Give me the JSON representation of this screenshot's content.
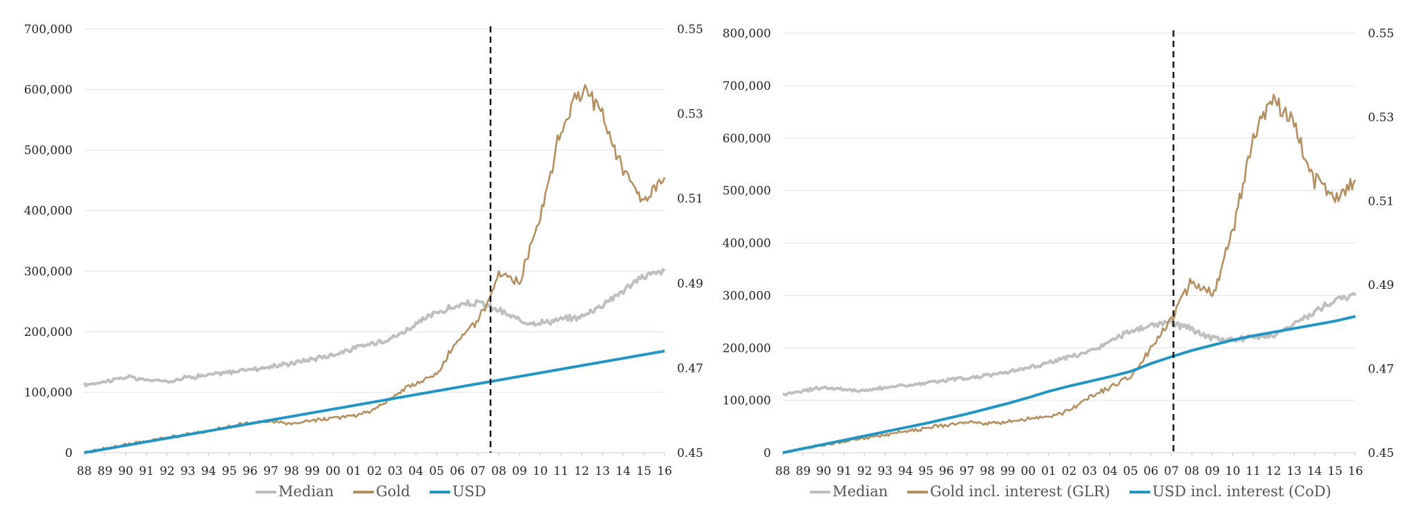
{
  "chart_data": [
    {
      "type": "line",
      "title": "",
      "xlabel": "",
      "ylabel": "",
      "x_tick_labels": [
        "88",
        "89",
        "90",
        "91",
        "92",
        "93",
        "94",
        "95",
        "96",
        "97",
        "98",
        "99",
        "00",
        "01",
        "02",
        "03",
        "04",
        "05",
        "06",
        "07",
        "08",
        "09",
        "10",
        "11",
        "12",
        "13",
        "14",
        "15",
        "16"
      ],
      "x_range": [
        1988,
        2016
      ],
      "ylim": [
        0,
        700000
      ],
      "y_ticks": [
        0,
        100000,
        200000,
        300000,
        400000,
        500000,
        600000,
        700000
      ],
      "y_tick_labels": [
        "0",
        "100,000",
        "200,000",
        "300,000",
        "400,000",
        "500,000",
        "600,000",
        "700,000"
      ],
      "y2lim": [
        0.45,
        0.55
      ],
      "y2_ticks": [
        0.45,
        0.47,
        0.49,
        0.51,
        0.53,
        0.55
      ],
      "y2_tick_labels": [
        "0.45",
        "0.47",
        "0.49",
        "0.51",
        "0.53",
        "0.55"
      ],
      "grid": true,
      "legend_position": "bottom",
      "vertical_marker_x": 2007.6,
      "series": [
        {
          "name": "Median",
          "color": "#bfbfbf",
          "x": [
            1988,
            1989,
            1990,
            1991,
            1992,
            1993,
            1994,
            1995,
            1996,
            1997,
            1998,
            1999,
            2000,
            2001,
            2002,
            2003,
            2004,
            2005,
            2006,
            2007,
            2008,
            2009,
            2010,
            2011,
            2012,
            2013,
            2014,
            2015,
            2016
          ],
          "values": [
            112000,
            118000,
            125000,
            120000,
            118000,
            125000,
            128000,
            133000,
            138000,
            142000,
            148000,
            155000,
            162000,
            172000,
            182000,
            192000,
            212000,
            232000,
            242000,
            248000,
            235000,
            218000,
            215000,
            220000,
            225000,
            245000,
            268000,
            292000,
            300000
          ]
        },
        {
          "name": "Gold",
          "color": "#b58e5d",
          "x": [
            1988,
            1989,
            1990,
            1991,
            1992,
            1993,
            1994,
            1995,
            1996,
            1997,
            1998,
            1999,
            2000,
            2001,
            2002,
            2003,
            2004,
            2005,
            2006,
            2007,
            2008,
            2009,
            2010,
            2011,
            2012,
            2013,
            2014,
            2015,
            2016
          ],
          "values": [
            0,
            7000,
            13000,
            19000,
            25000,
            30000,
            36000,
            43000,
            49000,
            52000,
            48000,
            52000,
            58000,
            60000,
            72000,
            95000,
            115000,
            130000,
            185000,
            215000,
            300000,
            280000,
            390000,
            540000,
            600000,
            560000,
            460000,
            420000,
            455000
          ]
        },
        {
          "name": "USD",
          "color": "#2196c4",
          "x": [
            1988,
            1989,
            1990,
            1991,
            1992,
            1993,
            1994,
            1995,
            1996,
            1997,
            1998,
            1999,
            2000,
            2001,
            2002,
            2003,
            2004,
            2005,
            2006,
            2007,
            2008,
            2009,
            2010,
            2011,
            2012,
            2013,
            2014,
            2015,
            2016
          ],
          "values": [
            0,
            6000,
            12000,
            18000,
            24000,
            30000,
            36000,
            42000,
            48000,
            54000,
            60000,
            66000,
            72000,
            78000,
            84000,
            90000,
            96000,
            102000,
            108000,
            114000,
            120000,
            126000,
            132000,
            138000,
            144000,
            150000,
            156000,
            162000,
            168000
          ]
        }
      ]
    },
    {
      "type": "line",
      "title": "",
      "xlabel": "",
      "ylabel": "",
      "x_tick_labels": [
        "88",
        "89",
        "90",
        "91",
        "92",
        "93",
        "94",
        "95",
        "96",
        "97",
        "98",
        "99",
        "00",
        "01",
        "02",
        "03",
        "04",
        "05",
        "06",
        "07",
        "08",
        "09",
        "10",
        "11",
        "12",
        "13",
        "14",
        "15",
        "16"
      ],
      "x_range": [
        1988,
        2016
      ],
      "ylim": [
        0,
        800000
      ],
      "y_ticks": [
        0,
        100000,
        200000,
        300000,
        400000,
        500000,
        600000,
        700000,
        800000
      ],
      "y_tick_labels": [
        "0",
        "100,000",
        "200,000",
        "300,000",
        "400,000",
        "500,000",
        "600,000",
        "700,000",
        "800,000"
      ],
      "y2lim": [
        0.45,
        0.55
      ],
      "y2_ticks": [
        0.45,
        0.47,
        0.49,
        0.51,
        0.53,
        0.55
      ],
      "y2_tick_labels": [
        "0.45",
        "0.47",
        "0.49",
        "0.51",
        "0.53",
        "0.55"
      ],
      "grid": true,
      "legend_position": "bottom",
      "vertical_marker_x": 2007.1,
      "series": [
        {
          "name": "Median",
          "color": "#bfbfbf",
          "x": [
            1988,
            1989,
            1990,
            1991,
            1992,
            1993,
            1994,
            1995,
            1996,
            1997,
            1998,
            1999,
            2000,
            2001,
            2002,
            2003,
            2004,
            2005,
            2006,
            2007,
            2008,
            2009,
            2010,
            2011,
            2012,
            2013,
            2014,
            2015,
            2016
          ],
          "values": [
            112000,
            118000,
            125000,
            120000,
            118000,
            125000,
            128000,
            133000,
            138000,
            142000,
            148000,
            155000,
            162000,
            172000,
            182000,
            192000,
            212000,
            232000,
            242000,
            248000,
            235000,
            218000,
            215000,
            220000,
            225000,
            245000,
            268000,
            292000,
            300000
          ]
        },
        {
          "name": "Gold incl. interest (GLR)",
          "color": "#b58e5d",
          "x": [
            1988,
            1989,
            1990,
            1991,
            1992,
            1993,
            1994,
            1995,
            1996,
            1997,
            1998,
            1999,
            2000,
            2001,
            2002,
            2003,
            2004,
            2005,
            2006,
            2007,
            2008,
            2009,
            2010,
            2011,
            2012,
            2013,
            2014,
            2015,
            2016
          ],
          "values": [
            0,
            8000,
            15000,
            22000,
            28000,
            34000,
            40000,
            47000,
            53000,
            58000,
            55000,
            60000,
            65000,
            68000,
            80000,
            105000,
            125000,
            145000,
            200000,
            255000,
            330000,
            300000,
            420000,
            600000,
            680000,
            620000,
            520000,
            480000,
            520000
          ]
        },
        {
          "name": "USD incl. interest (CoD)",
          "color": "#2196c4",
          "x": [
            1988,
            1989,
            1990,
            1991,
            1992,
            1993,
            1994,
            1995,
            1996,
            1997,
            1998,
            1999,
            2000,
            2001,
            2002,
            2003,
            2004,
            2005,
            2006,
            2007,
            2008,
            2009,
            2010,
            2011,
            2012,
            2013,
            2014,
            2015,
            2016
          ],
          "values": [
            0,
            8000,
            16000,
            24000,
            32000,
            40000,
            48000,
            56000,
            65000,
            74000,
            84000,
            94000,
            105000,
            117000,
            127000,
            136000,
            145000,
            155000,
            170000,
            183000,
            195000,
            205000,
            215000,
            223000,
            230000,
            237000,
            244000,
            251000,
            260000
          ]
        }
      ]
    }
  ]
}
